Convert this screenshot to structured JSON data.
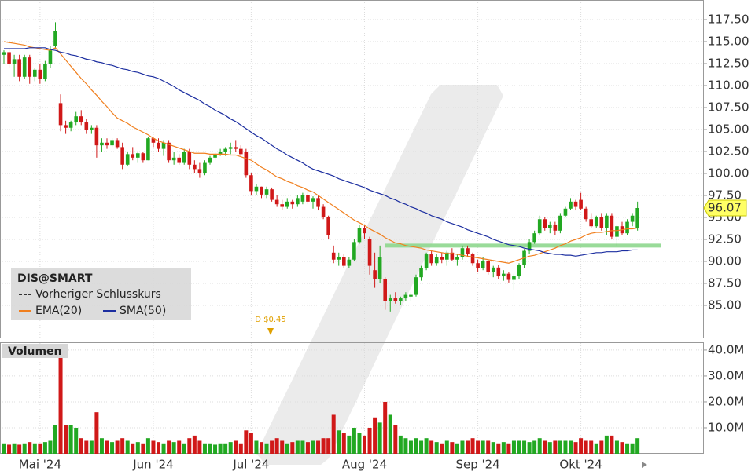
{
  "chart_data": {
    "type": "candlestick",
    "legend_title": "DIS@SMART",
    "legend_extra": "Vorheriger Schlusskurs",
    "annotation": "D $0.45",
    "grid": true,
    "up_color": "#22a822",
    "down_color": "#d01818",
    "categories": [
      null,
      null,
      null,
      null,
      null,
      null,
      null,
      "Mai '24",
      null,
      null,
      null,
      null,
      null,
      null,
      null,
      null,
      null,
      null,
      null,
      null,
      null,
      null,
      null,
      null,
      null,
      null,
      null,
      null,
      null,
      "Jun '24",
      null,
      null,
      null,
      null,
      null,
      null,
      null,
      null,
      null,
      null,
      null,
      null,
      null,
      null,
      null,
      null,
      null,
      null,
      "Jul '24",
      null,
      null,
      null,
      null,
      null,
      null,
      null,
      null,
      null,
      null,
      null,
      null,
      null,
      null,
      null,
      null,
      null,
      null,
      null,
      null,
      null,
      "Aug '24",
      null,
      null,
      null,
      null,
      null,
      null,
      null,
      null,
      null,
      null,
      null,
      null,
      null,
      null,
      null,
      null,
      null,
      null,
      null,
      null,
      null,
      "Sep '24",
      null,
      null,
      null,
      null,
      null,
      null,
      null,
      null,
      null,
      null,
      null,
      null,
      null,
      null,
      null,
      null,
      null,
      null,
      null,
      "Okt '24",
      null,
      null,
      null,
      null,
      null,
      null,
      null,
      null,
      null,
      null,
      null
    ],
    "open": [
      113.5,
      113.8,
      112.5,
      113,
      111,
      113.2,
      111,
      111.8,
      110.8,
      112.5,
      114.5,
      108,
      105.5,
      105.2,
      105.8,
      106.5,
      105.8,
      105,
      105.2,
      103.2,
      103.5,
      103.2,
      103.8,
      103,
      101,
      102.2,
      101.8,
      102.3,
      101.5,
      104,
      103.5,
      102.8,
      103.5,
      101.5,
      101.8,
      101.2,
      102.5,
      101,
      100.5,
      100,
      101.2,
      101.8,
      102.2,
      102.5,
      102.8,
      103,
      102.8,
      102.5,
      99.8,
      98,
      98.5,
      97.6,
      98.2,
      97,
      96.5,
      96.2,
      96.8,
      96.5,
      96.8,
      97.5,
      96.8,
      97.2,
      96.2,
      95,
      91,
      90.2,
      90.5,
      89.5,
      90.2,
      92.2,
      93.8,
      92.5,
      89,
      88,
      88,
      85.5,
      85.8,
      85.5,
      85.8,
      86,
      86.2,
      88.2,
      89.2,
      90.8,
      89.8,
      90.5,
      90.2,
      91,
      90.2,
      90.5,
      91.5,
      90.8,
      89.8,
      89.2,
      90,
      88.8,
      89.3,
      88.3,
      88.6,
      87.9,
      88.3,
      89.6,
      91.2,
      92.2,
      93.2,
      94.8,
      93.8,
      94.2,
      93.5,
      95.2,
      96,
      96.8,
      97,
      96,
      94.8,
      94,
      95,
      93.8,
      95.2,
      92.8,
      94,
      93.2,
      94.5,
      93.8
    ],
    "high": [
      114,
      114.2,
      113.5,
      113.5,
      113.5,
      113.5,
      112,
      112.5,
      112.8,
      114.5,
      117.2,
      109,
      106,
      106,
      107,
      107.2,
      106.2,
      105.5,
      105.5,
      104,
      104,
      104,
      104,
      103.5,
      102.5,
      103,
      102.5,
      102.5,
      104.2,
      104.2,
      104,
      103.8,
      103.8,
      102.5,
      102.2,
      102.8,
      102.8,
      101.5,
      101.2,
      101.5,
      102,
      102.5,
      102.8,
      103,
      103.5,
      103.8,
      103.2,
      102.8,
      100,
      98.8,
      98.5,
      98.5,
      98.4,
      97.5,
      97,
      97.2,
      97,
      97.5,
      97.8,
      98,
      97.4,
      97.5,
      96.5,
      95.2,
      91.8,
      91,
      90.8,
      90.5,
      92.5,
      94.2,
      94.2,
      92.8,
      91,
      91.8,
      88.2,
      86.2,
      86.5,
      86,
      86.5,
      86.5,
      88.5,
      89.5,
      91,
      91.2,
      90.8,
      91,
      91.2,
      91.5,
      90.8,
      91.8,
      91.8,
      91,
      90.2,
      90.5,
      90.2,
      89.5,
      89.6,
      89,
      88.8,
      88.6,
      89.8,
      91.4,
      92.5,
      93.5,
      95.2,
      95,
      94.5,
      94.5,
      95.5,
      96.2,
      97.2,
      97,
      97.8,
      96.2,
      95.5,
      95.2,
      95.5,
      95.5,
      95.5,
      94.2,
      94.5,
      94.8,
      95.5,
      96.8
    ],
    "low": [
      112.5,
      112,
      111,
      110.5,
      110.8,
      110.2,
      110.5,
      110.2,
      110.5,
      112,
      114.2,
      104.8,
      104.5,
      104.8,
      105.5,
      105.5,
      104.5,
      104.5,
      101.8,
      102.5,
      102.8,
      103,
      102.8,
      100.5,
      100.8,
      101.5,
      101.2,
      101.2,
      101.5,
      103,
      102.5,
      102,
      101.2,
      101,
      101,
      101,
      100.5,
      100,
      99.5,
      99.8,
      101,
      101.5,
      102,
      102,
      102.2,
      102.5,
      102,
      99.5,
      97.5,
      97.5,
      97.2,
      97.2,
      96.8,
      96.2,
      95.8,
      96,
      96,
      96.2,
      96.5,
      96.5,
      96,
      95.8,
      94.8,
      92.5,
      89.8,
      89.5,
      89.2,
      89.2,
      90,
      92,
      92.5,
      88.5,
      87,
      87.5,
      84.5,
      84.3,
      85.2,
      85,
      85.5,
      85.5,
      86,
      87.8,
      89,
      89.5,
      89.5,
      89.8,
      89.5,
      90,
      89.5,
      90.2,
      90.5,
      89.5,
      88.8,
      89,
      88.5,
      88.2,
      88,
      87.8,
      87.6,
      86.8,
      88,
      89.2,
      90.8,
      92,
      93,
      93.5,
      93.2,
      93,
      93.2,
      95,
      95.8,
      95.8,
      95.8,
      94.5,
      93.8,
      93.8,
      93.5,
      93,
      92.5,
      91.8,
      93,
      93,
      94,
      93.5
    ],
    "close": [
      113.8,
      112.5,
      113,
      111,
      113.2,
      111,
      111.8,
      110.8,
      112.5,
      114,
      116.2,
      105.5,
      105.2,
      105.8,
      106.5,
      105.8,
      105,
      105.2,
      103.2,
      103.5,
      103.2,
      103.8,
      103,
      101,
      102.2,
      101.8,
      102.3,
      101.5,
      104,
      103.5,
      102.8,
      103.5,
      101.5,
      101.8,
      101.2,
      102.5,
      101,
      100.5,
      100,
      101.2,
      101.8,
      102.2,
      102.5,
      102.8,
      103,
      102.8,
      102.2,
      99.8,
      98,
      98.5,
      97.6,
      98.2,
      97,
      96.5,
      96.2,
      96.8,
      96.5,
      97.2,
      97.5,
      96.8,
      97.2,
      96.2,
      95,
      93,
      90.2,
      90.5,
      89.5,
      90.2,
      92.2,
      93.8,
      93.2,
      89.5,
      88,
      90.5,
      85.5,
      85.8,
      85.5,
      85.8,
      86.2,
      86.2,
      88.2,
      89.2,
      90.8,
      89.8,
      90.5,
      90.2,
      91,
      90.2,
      90.5,
      91.5,
      90.8,
      89.8,
      89.2,
      90,
      88.8,
      89.3,
      88.3,
      88.6,
      87.9,
      88.3,
      89.6,
      91.2,
      92.2,
      93.2,
      94.8,
      93.8,
      94.2,
      93.5,
      95.2,
      96,
      96.8,
      96.2,
      96,
      94.8,
      94,
      95,
      93.8,
      95.2,
      92.8,
      94,
      93.2,
      94.5,
      95.2,
      96.07
    ],
    "series": [
      {
        "name": "EMA(20)",
        "color": "#f07f1e",
        "values": [
          115.0,
          114.9,
          114.8,
          114.7,
          114.6,
          114.4,
          114.3,
          114.2,
          114.1,
          114.0,
          114.3,
          113.6,
          112.9,
          112.2,
          111.5,
          110.8,
          110.2,
          109.5,
          108.9,
          108.2,
          107.6,
          106.9,
          106.3,
          106.0,
          105.7,
          105.3,
          105.0,
          104.7,
          104.4,
          104.0,
          103.7,
          103.5,
          103.3,
          103.1,
          102.9,
          102.7,
          102.5,
          102.3,
          102.3,
          102.3,
          102.2,
          102.2,
          102.2,
          102.2,
          102.1,
          102.1,
          101.9,
          101.7,
          101.5,
          101.1,
          100.7,
          100.4,
          100.0,
          99.6,
          99.4,
          99.1,
          98.9,
          98.6,
          98.4,
          98.1,
          97.9,
          97.5,
          97.1,
          96.7,
          96.3,
          95.9,
          95.5,
          95.1,
          94.7,
          94.4,
          94.1,
          93.7,
          93.4,
          93.1,
          92.7,
          92.4,
          92.1,
          92.0,
          91.8,
          91.7,
          91.6,
          91.5,
          91.3,
          91.2,
          91.1,
          91.0,
          90.9,
          90.9,
          90.8,
          90.7,
          90.6,
          90.5,
          90.4,
          90.3,
          90.2,
          90.1,
          90.0,
          89.9,
          89.8,
          90.0,
          90.2,
          90.4,
          90.6,
          90.7,
          90.9,
          91.1,
          91.3,
          91.5,
          91.8,
          92.0,
          92.3,
          92.5,
          92.7,
          93.0,
          93.2,
          93.3,
          93.3,
          93.4,
          93.5,
          93.5,
          93.6,
          93.7,
          93.7,
          93.8
        ]
      },
      {
        "name": "SMA(50)",
        "color": "#1c2ea0",
        "values": [
          114.2,
          114.2,
          114.2,
          114.2,
          114.2,
          114.3,
          114.3,
          114.3,
          114.3,
          114.1,
          114.0,
          113.8,
          113.7,
          113.5,
          113.4,
          113.2,
          113.0,
          112.9,
          112.7,
          112.6,
          112.4,
          112.3,
          112.1,
          111.9,
          111.8,
          111.6,
          111.5,
          111.3,
          111.1,
          111.0,
          110.8,
          110.5,
          110.2,
          109.9,
          109.5,
          109.2,
          108.9,
          108.6,
          108.3,
          107.9,
          107.6,
          107.2,
          106.9,
          106.6,
          106.2,
          105.9,
          105.5,
          105.1,
          104.7,
          104.3,
          104.0,
          103.6,
          103.2,
          102.8,
          102.5,
          102.1,
          101.8,
          101.5,
          101.2,
          100.8,
          100.5,
          100.3,
          100.1,
          99.9,
          99.7,
          99.4,
          99.2,
          99.0,
          98.8,
          98.6,
          98.4,
          98.1,
          97.9,
          97.7,
          97.5,
          97.2,
          97.0,
          96.7,
          96.5,
          96.2,
          96.0,
          95.7,
          95.5,
          95.2,
          95.0,
          94.8,
          94.5,
          94.3,
          94.1,
          93.9,
          93.6,
          93.4,
          93.2,
          93.0,
          92.8,
          92.5,
          92.3,
          92.1,
          91.9,
          91.8,
          91.7,
          91.5,
          91.4,
          91.3,
          91.2,
          91.0,
          90.9,
          90.8,
          90.8,
          90.7,
          90.7,
          90.6,
          90.7,
          90.8,
          90.9,
          91.0,
          91.0,
          91.1,
          91.1,
          91.1,
          91.2,
          91.2,
          91.3,
          91.3
        ]
      }
    ],
    "ylim": [
      81.34,
      119.73
    ],
    "yticks": [
      {
        "value": 85,
        "label": "85.00"
      },
      {
        "value": 87.5,
        "label": "87.50"
      },
      {
        "value": 90,
        "label": "90.00"
      },
      {
        "value": 92.5,
        "label": "92.50"
      },
      {
        "value": 95,
        "label": "95.00"
      },
      {
        "value": 97.5,
        "label": "97.50"
      },
      {
        "value": 100,
        "label": "100.00"
      },
      {
        "value": 102.5,
        "label": "102.50"
      },
      {
        "value": 105,
        "label": "105.00"
      },
      {
        "value": 107.5,
        "label": "107.50"
      },
      {
        "value": 110,
        "label": "110.00"
      },
      {
        "value": 112.5,
        "label": "112.50"
      },
      {
        "value": 115,
        "label": "115.00"
      },
      {
        "value": 117.5,
        "label": "117.50"
      }
    ],
    "level": {
      "value": 91.8,
      "color": "#8ed88e"
    },
    "volume": {
      "type": "bar",
      "title": "Volumen",
      "values": [
        4,
        3.5,
        4,
        3.5,
        4,
        4.5,
        4,
        4,
        4.5,
        5,
        11,
        41,
        11,
        11,
        10,
        6,
        5,
        5,
        16,
        6,
        5,
        4.5,
        5,
        6,
        5,
        4,
        4.5,
        4,
        6,
        5,
        4.5,
        4,
        5,
        4.5,
        5,
        4,
        6,
        7,
        5,
        4,
        4,
        3.5,
        4,
        4,
        4.5,
        5,
        4,
        9,
        8,
        5,
        4.5,
        4,
        5,
        6,
        5,
        4,
        4.5,
        5,
        5,
        4.5,
        5,
        5,
        6,
        6,
        15,
        9,
        8,
        7,
        10,
        8,
        7,
        10,
        14,
        12,
        20,
        15,
        11,
        7,
        6,
        5,
        6,
        5,
        6,
        5,
        4.5,
        4,
        5,
        4.5,
        4,
        5,
        5,
        6,
        5,
        5,
        5,
        4.5,
        4,
        4.5,
        4,
        5,
        5,
        5,
        4.5,
        5,
        6,
        5,
        4.5,
        5,
        5,
        5,
        5,
        4.5,
        6,
        5,
        5,
        4,
        5,
        7,
        7,
        5,
        4.5,
        4,
        4,
        6
      ],
      "ylim": [
        0,
        42.7
      ],
      "yticks": [
        {
          "value": 10,
          "label": "10.0M"
        },
        {
          "value": 20,
          "label": "20.0M"
        },
        {
          "value": 30,
          "label": "30.0M"
        },
        {
          "value": 40,
          "label": "40.0M"
        }
      ]
    }
  }
}
